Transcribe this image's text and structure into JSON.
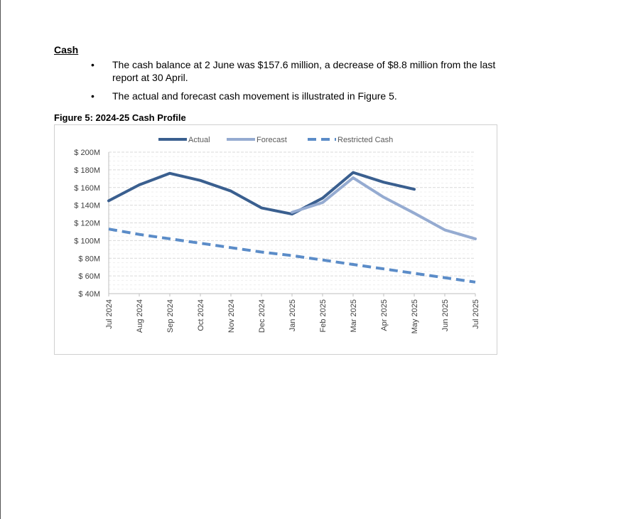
{
  "section": {
    "heading": "Cash"
  },
  "bullets": [
    "The cash balance at 2 June was $157.6 million, a decrease of $8.8 million from the last report at 30 April.",
    "The actual and forecast cash movement is illustrated in Figure 5."
  ],
  "figure": {
    "caption": "Figure 5: 2024-25 Cash Profile"
  },
  "chart_data": {
    "type": "line",
    "title": "2024-25 Cash Profile",
    "xlabel": "",
    "ylabel": "",
    "categories": [
      "Jul 2024",
      "Aug 2024",
      "Sep 2024",
      "Oct 2024",
      "Nov 2024",
      "Dec 2024",
      "Jan 2025",
      "Feb 2025",
      "Mar 2025",
      "Apr 2025",
      "May 2025",
      "Jun 2025",
      "Jul 2025"
    ],
    "ylim": [
      40,
      200
    ],
    "yticks": [
      40,
      60,
      80,
      100,
      120,
      140,
      160,
      180,
      200
    ],
    "ytick_labels": [
      "$ 40M",
      "$ 60M",
      "$ 80M",
      "$ 100M",
      "$ 120M",
      "$ 140M",
      "$ 160M",
      "$ 180M",
      "$ 200M"
    ],
    "grid": true,
    "legend_position": "top",
    "series": [
      {
        "name": "Actual",
        "style": "solid",
        "color": "#3a5f8f",
        "values": [
          145,
          163,
          176,
          168,
          156,
          137,
          130,
          148,
          177,
          166,
          158,
          null,
          null
        ]
      },
      {
        "name": "Forecast",
        "style": "solid",
        "color": "#95abd1",
        "values": [
          null,
          null,
          null,
          null,
          null,
          null,
          132,
          143,
          171,
          149,
          131,
          112,
          102
        ]
      },
      {
        "name": "Restricted Cash",
        "style": "dashed",
        "color": "#5b8cc8",
        "values": [
          113,
          107,
          102,
          97,
          92,
          87,
          83,
          78,
          73,
          68,
          63,
          58,
          53
        ]
      }
    ]
  }
}
